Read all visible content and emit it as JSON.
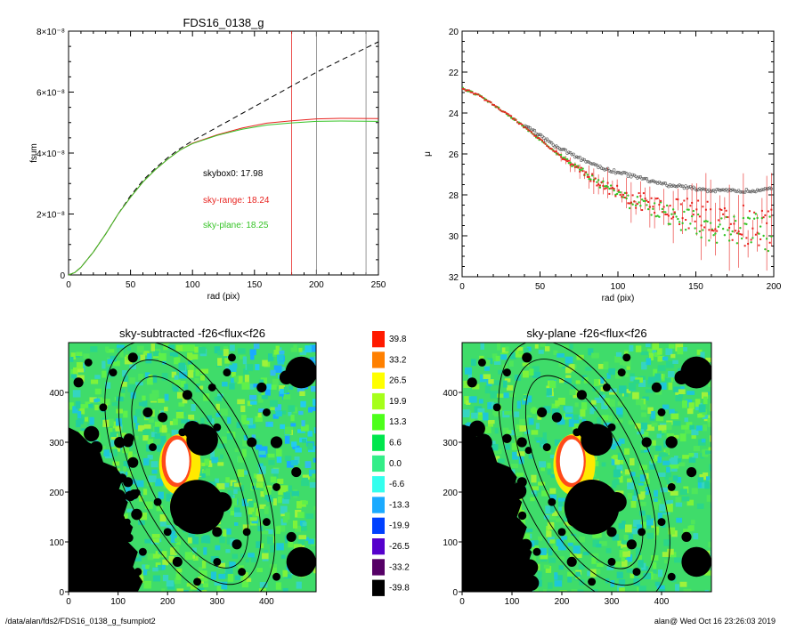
{
  "footer": {
    "left": "/data/alan/fds2/FDS16_0138_g_fsumplot2",
    "right": "alan@  Wed Oct 16 23:26:03 2019"
  },
  "colors": {
    "red": "#e8231f",
    "green": "#36c427",
    "grey": "#808080"
  },
  "chart_data": [
    {
      "type": "line",
      "title": "FDS16_0138_g",
      "xlabel": "rad (pix)",
      "ylabel": "fsum",
      "xlim": [
        0,
        250
      ],
      "ylim": [
        0,
        8e-08
      ],
      "xticks": [
        "0",
        "50",
        "100",
        "150",
        "200",
        "250"
      ],
      "yticks": [
        "0",
        "2×10⁻⁸",
        "4×10⁻⁸",
        "6×10⁻⁸",
        "8×10⁻⁸"
      ],
      "vlines": [
        {
          "x": 180,
          "color": "red"
        },
        {
          "x": 200,
          "color": "grey"
        },
        {
          "x": 240,
          "color": "grey"
        }
      ],
      "annotations": [
        "skybox0: 17.98",
        "sky-range: 18.24",
        "sky-plane: 18.25"
      ],
      "series": [
        {
          "style": "dashed",
          "color": "black",
          "x": [
            0,
            5,
            10,
            20,
            30,
            40,
            50,
            60,
            70,
            80,
            90,
            100,
            120,
            140,
            160,
            180,
            200,
            220,
            250
          ],
          "y": [
            0,
            0.08,
            0.25,
            0.75,
            1.35,
            2.0,
            2.6,
            3.1,
            3.5,
            3.85,
            4.15,
            4.4,
            4.85,
            5.3,
            5.75,
            6.2,
            6.65,
            7.05,
            7.65
          ]
        },
        {
          "style": "solid",
          "color": "red",
          "x": [
            0,
            5,
            10,
            20,
            30,
            40,
            50,
            60,
            70,
            80,
            90,
            100,
            120,
            140,
            160,
            180,
            200,
            220,
            250
          ],
          "y": [
            0,
            0.08,
            0.25,
            0.75,
            1.35,
            2.0,
            2.55,
            3.05,
            3.45,
            3.8,
            4.1,
            4.32,
            4.6,
            4.82,
            4.98,
            5.06,
            5.12,
            5.14,
            5.13
          ]
        },
        {
          "style": "solid",
          "color": "green",
          "x": [
            0,
            5,
            10,
            20,
            30,
            40,
            50,
            60,
            70,
            80,
            90,
            100,
            120,
            140,
            160,
            180,
            200,
            220,
            250
          ],
          "y": [
            0,
            0.08,
            0.25,
            0.75,
            1.35,
            2.0,
            2.55,
            3.05,
            3.45,
            3.8,
            4.1,
            4.31,
            4.58,
            4.78,
            4.92,
            4.99,
            5.04,
            5.05,
            5.04
          ]
        }
      ]
    },
    {
      "type": "scatter",
      "xlabel": "rad (pix)",
      "ylabel": "μ",
      "xlim": [
        0,
        200
      ],
      "ylim": [
        32,
        20
      ],
      "xticks": [
        "0",
        "50",
        "100",
        "150",
        "200"
      ],
      "yticks": [
        "20",
        "22",
        "24",
        "26",
        "28",
        "30",
        "32"
      ],
      "profile": {
        "x": [
          0,
          10,
          20,
          30,
          40,
          50,
          60,
          70,
          80,
          90,
          100,
          110,
          120,
          130,
          140,
          150,
          160,
          170,
          180,
          190,
          200
        ],
        "grey": [
          22.8,
          23.1,
          23.6,
          24.1,
          24.6,
          25.1,
          25.6,
          26.0,
          26.4,
          26.7,
          26.9,
          27.1,
          27.3,
          27.5,
          27.6,
          27.7,
          27.8,
          27.8,
          27.8,
          27.8,
          27.7
        ],
        "red": [
          22.8,
          23.1,
          23.6,
          24.1,
          24.7,
          25.3,
          25.9,
          26.5,
          27.0,
          27.5,
          27.9,
          28.2,
          28.4,
          28.6,
          28.8,
          29.0,
          29.2,
          29.4,
          29.5,
          29.6,
          29.6
        ],
        "green": [
          22.8,
          23.1,
          23.6,
          24.1,
          24.7,
          25.3,
          25.9,
          26.5,
          27.0,
          27.5,
          28.0,
          28.4,
          28.7,
          28.9,
          29.2,
          29.4,
          29.6,
          29.7,
          29.8,
          29.8,
          29.9
        ]
      }
    },
    {
      "type": "heatmap",
      "title": "sky-subtracted -f26<flux<f26",
      "xlim": [
        0,
        500
      ],
      "ylim": [
        0,
        500
      ],
      "xticks": [
        "0",
        "100",
        "200",
        "300",
        "400"
      ],
      "yticks": [
        "0",
        "100",
        "200",
        "300",
        "400"
      ]
    },
    {
      "type": "heatmap",
      "title": "sky-plane -f26<flux<f26",
      "xlim": [
        0,
        500
      ],
      "ylim": [
        0,
        500
      ],
      "xticks": [
        "0",
        "100",
        "200",
        "300",
        "400"
      ],
      "yticks": [
        "0",
        "100",
        "200",
        "300",
        "400"
      ]
    },
    {
      "type": "colorbar",
      "labels": [
        "39.8",
        "33.2",
        "26.5",
        "19.9",
        "13.3",
        "6.6",
        "0.0",
        "-6.6",
        "-13.3",
        "-19.9",
        "-26.5",
        "-33.2",
        "-39.8"
      ],
      "colors": [
        "#ff1a00",
        "#ff8000",
        "#ffff00",
        "#a6ff1a",
        "#4dff1a",
        "#00e64d",
        "#33ee88",
        "#33ffee",
        "#1aaaff",
        "#0040ff",
        "#5500cc",
        "#550066",
        "#000000"
      ]
    }
  ]
}
